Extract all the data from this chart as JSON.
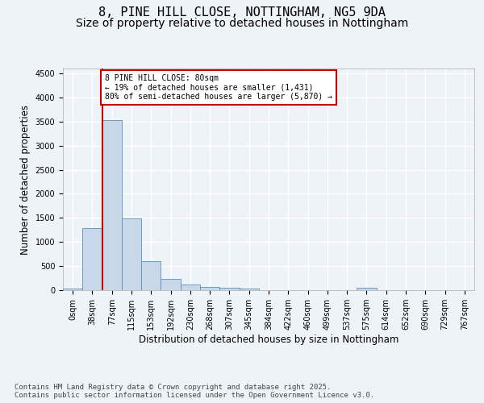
{
  "title_line1": "8, PINE HILL CLOSE, NOTTINGHAM, NG5 9DA",
  "title_line2": "Size of property relative to detached houses in Nottingham",
  "xlabel": "Distribution of detached houses by size in Nottingham",
  "ylabel": "Number of detached properties",
  "bin_labels": [
    "0sqm",
    "38sqm",
    "77sqm",
    "115sqm",
    "153sqm",
    "192sqm",
    "230sqm",
    "268sqm",
    "307sqm",
    "345sqm",
    "384sqm",
    "422sqm",
    "460sqm",
    "499sqm",
    "537sqm",
    "575sqm",
    "614sqm",
    "652sqm",
    "690sqm",
    "729sqm",
    "767sqm"
  ],
  "bar_values": [
    30,
    1280,
    3530,
    1490,
    595,
    240,
    120,
    75,
    45,
    30,
    5,
    0,
    0,
    0,
    0,
    55,
    0,
    0,
    0,
    0,
    0
  ],
  "bar_color": "#c8d8e8",
  "bar_edge_color": "#5590c0",
  "property_line_x": 2,
  "annotation_text": "8 PINE HILL CLOSE: 80sqm\n← 19% of detached houses are smaller (1,431)\n80% of semi-detached houses are larger (5,870) →",
  "annotation_box_color": "#ffffff",
  "annotation_box_edge": "#cc0000",
  "vline_color": "#cc0000",
  "ylim": [
    0,
    4600
  ],
  "yticks": [
    0,
    500,
    1000,
    1500,
    2000,
    2500,
    3000,
    3500,
    4000,
    4500
  ],
  "footer_text": "Contains HM Land Registry data © Crown copyright and database right 2025.\nContains public sector information licensed under the Open Government Licence v3.0.",
  "bg_color": "#eef3f8",
  "plot_bg_color": "#eef3f8",
  "grid_color": "#ffffff",
  "title_fontsize": 11,
  "subtitle_fontsize": 10,
  "axis_label_fontsize": 8.5,
  "tick_fontsize": 7,
  "footer_fontsize": 6.5
}
